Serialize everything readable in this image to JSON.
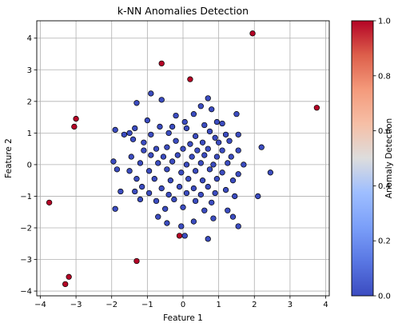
{
  "chart_data": {
    "type": "scatter",
    "title": "k-NN Anomalies Detection",
    "xlabel": "Feature 1",
    "ylabel": "Feature 2",
    "xlim": [
      -4.1,
      4.1
    ],
    "ylim": [
      -4.15,
      4.55
    ],
    "xticks": [
      -4,
      -3,
      -2,
      -1,
      0,
      1,
      2,
      3,
      4
    ],
    "yticks": [
      -4,
      -3,
      -2,
      -1,
      0,
      1,
      2,
      3,
      4
    ],
    "grid": true,
    "colormap": "coolwarm",
    "colorbar": {
      "label": "Anomaly Detection",
      "range": [
        0.0,
        1.0
      ],
      "ticks": [
        "0.0",
        "0.2",
        "0.4",
        "0.6",
        "0.8",
        "1.0"
      ]
    },
    "colors": {
      "normal": "#3b4cc0",
      "anomaly": "#b40426"
    },
    "points": [
      {
        "x": 1.95,
        "y": 4.15,
        "c": 1
      },
      {
        "x": -0.6,
        "y": 3.2,
        "c": 1
      },
      {
        "x": 0.2,
        "y": 2.7,
        "c": 1
      },
      {
        "x": 3.75,
        "y": 1.8,
        "c": 1
      },
      {
        "x": -3.0,
        "y": 1.45,
        "c": 1
      },
      {
        "x": -3.05,
        "y": 1.2,
        "c": 1
      },
      {
        "x": -3.75,
        "y": -1.2,
        "c": 1
      },
      {
        "x": -0.1,
        "y": -2.25,
        "c": 1
      },
      {
        "x": -1.3,
        "y": -3.05,
        "c": 1
      },
      {
        "x": -3.2,
        "y": -3.55,
        "c": 1
      },
      {
        "x": -3.3,
        "y": -3.78,
        "c": 1
      },
      {
        "x": -0.9,
        "y": 2.25,
        "c": 0
      },
      {
        "x": -0.6,
        "y": 2.05,
        "c": 0
      },
      {
        "x": 0.7,
        "y": 2.1,
        "c": 0
      },
      {
        "x": -1.3,
        "y": 1.95,
        "c": 0
      },
      {
        "x": 0.5,
        "y": 1.85,
        "c": 0
      },
      {
        "x": 0.8,
        "y": 1.75,
        "c": 0
      },
      {
        "x": -0.2,
        "y": 1.55,
        "c": 0
      },
      {
        "x": 0.3,
        "y": 1.6,
        "c": 0
      },
      {
        "x": 1.5,
        "y": 1.6,
        "c": 0
      },
      {
        "x": -1.0,
        "y": 1.4,
        "c": 0
      },
      {
        "x": 0.05,
        "y": 1.35,
        "c": 0
      },
      {
        "x": 0.95,
        "y": 1.35,
        "c": 0
      },
      {
        "x": -1.9,
        "y": 1.1,
        "c": 0
      },
      {
        "x": -1.65,
        "y": 0.95,
        "c": 0
      },
      {
        "x": -1.5,
        "y": 1.0,
        "c": 0
      },
      {
        "x": -1.35,
        "y": 1.15,
        "c": 0
      },
      {
        "x": -0.65,
        "y": 1.2,
        "c": 0
      },
      {
        "x": -0.3,
        "y": 1.2,
        "c": 0
      },
      {
        "x": 0.1,
        "y": 1.15,
        "c": 0
      },
      {
        "x": 0.6,
        "y": 1.25,
        "c": 0
      },
      {
        "x": 0.75,
        "y": 1.05,
        "c": 0
      },
      {
        "x": 1.1,
        "y": 1.3,
        "c": 0
      },
      {
        "x": -1.4,
        "y": 0.8,
        "c": 0
      },
      {
        "x": -0.9,
        "y": 0.95,
        "c": 0
      },
      {
        "x": -0.4,
        "y": 1.0,
        "c": 0
      },
      {
        "x": 0.35,
        "y": 0.9,
        "c": 0
      },
      {
        "x": 0.9,
        "y": 0.85,
        "c": 0
      },
      {
        "x": 1.2,
        "y": 0.95,
        "c": 0
      },
      {
        "x": 1.55,
        "y": 0.95,
        "c": 0
      },
      {
        "x": -1.1,
        "y": 0.7,
        "c": 0
      },
      {
        "x": -0.2,
        "y": 0.75,
        "c": 0
      },
      {
        "x": 0.2,
        "y": 0.65,
        "c": 0
      },
      {
        "x": 0.55,
        "y": 0.7,
        "c": 0
      },
      {
        "x": 1.0,
        "y": 0.7,
        "c": 0
      },
      {
        "x": 1.3,
        "y": 0.75,
        "c": 0
      },
      {
        "x": -1.1,
        "y": 0.45,
        "c": 0
      },
      {
        "x": -0.75,
        "y": 0.5,
        "c": 0
      },
      {
        "x": -0.45,
        "y": 0.55,
        "c": 0
      },
      {
        "x": 0.0,
        "y": 0.5,
        "c": 0
      },
      {
        "x": 0.4,
        "y": 0.45,
        "c": 0
      },
      {
        "x": 0.7,
        "y": 0.5,
        "c": 0
      },
      {
        "x": 1.1,
        "y": 0.45,
        "c": 0
      },
      {
        "x": 1.55,
        "y": 0.45,
        "c": 0
      },
      {
        "x": 2.2,
        "y": 0.55,
        "c": 0
      },
      {
        "x": -1.45,
        "y": 0.25,
        "c": 0
      },
      {
        "x": -0.9,
        "y": 0.3,
        "c": 0
      },
      {
        "x": -0.55,
        "y": 0.25,
        "c": 0
      },
      {
        "x": -0.15,
        "y": 0.3,
        "c": 0
      },
      {
        "x": 0.25,
        "y": 0.25,
        "c": 0
      },
      {
        "x": 0.6,
        "y": 0.3,
        "c": 0
      },
      {
        "x": 0.95,
        "y": 0.25,
        "c": 0
      },
      {
        "x": 1.35,
        "y": 0.25,
        "c": 0
      },
      {
        "x": -1.95,
        "y": 0.1,
        "c": 0
      },
      {
        "x": -1.2,
        "y": 0.05,
        "c": 0
      },
      {
        "x": -0.7,
        "y": 0.05,
        "c": 0
      },
      {
        "x": -0.3,
        "y": 0.1,
        "c": 0
      },
      {
        "x": 0.1,
        "y": 0.0,
        "c": 0
      },
      {
        "x": 0.5,
        "y": 0.05,
        "c": 0
      },
      {
        "x": 0.85,
        "y": 0.0,
        "c": 0
      },
      {
        "x": 1.25,
        "y": 0.05,
        "c": 0
      },
      {
        "x": 1.7,
        "y": 0.0,
        "c": 0
      },
      {
        "x": -1.85,
        "y": -0.15,
        "c": 0
      },
      {
        "x": -1.5,
        "y": -0.2,
        "c": 0
      },
      {
        "x": -0.95,
        "y": -0.2,
        "c": 0
      },
      {
        "x": -0.45,
        "y": -0.15,
        "c": 0
      },
      {
        "x": -0.05,
        "y": -0.25,
        "c": 0
      },
      {
        "x": 0.35,
        "y": -0.2,
        "c": 0
      },
      {
        "x": 0.75,
        "y": -0.15,
        "c": 0
      },
      {
        "x": 1.1,
        "y": -0.25,
        "c": 0
      },
      {
        "x": 1.55,
        "y": -0.3,
        "c": 0
      },
      {
        "x": 2.45,
        "y": -0.25,
        "c": 0
      },
      {
        "x": -1.3,
        "y": -0.45,
        "c": 0
      },
      {
        "x": -0.8,
        "y": -0.45,
        "c": 0
      },
      {
        "x": -0.35,
        "y": -0.5,
        "c": 0
      },
      {
        "x": 0.15,
        "y": -0.45,
        "c": 0
      },
      {
        "x": 0.55,
        "y": -0.5,
        "c": 0
      },
      {
        "x": 0.95,
        "y": -0.45,
        "c": 0
      },
      {
        "x": 1.4,
        "y": -0.5,
        "c": 0
      },
      {
        "x": -1.15,
        "y": -0.7,
        "c": 0
      },
      {
        "x": -0.6,
        "y": -0.75,
        "c": 0
      },
      {
        "x": -0.1,
        "y": -0.7,
        "c": 0
      },
      {
        "x": 0.3,
        "y": -0.75,
        "c": 0
      },
      {
        "x": 0.7,
        "y": -0.7,
        "c": 0
      },
      {
        "x": 1.2,
        "y": -0.8,
        "c": 0
      },
      {
        "x": -1.75,
        "y": -0.85,
        "c": 0
      },
      {
        "x": -1.35,
        "y": -0.85,
        "c": 0
      },
      {
        "x": -0.95,
        "y": -0.9,
        "c": 0
      },
      {
        "x": -0.4,
        "y": -0.95,
        "c": 0
      },
      {
        "x": 0.1,
        "y": -0.9,
        "c": 0
      },
      {
        "x": 0.5,
        "y": -0.95,
        "c": 0
      },
      {
        "x": 0.9,
        "y": -0.9,
        "c": 0
      },
      {
        "x": 1.45,
        "y": -1.0,
        "c": 0
      },
      {
        "x": 2.1,
        "y": -1.0,
        "c": 0
      },
      {
        "x": -1.2,
        "y": -1.1,
        "c": 0
      },
      {
        "x": -0.75,
        "y": -1.15,
        "c": 0
      },
      {
        "x": -0.25,
        "y": -1.1,
        "c": 0
      },
      {
        "x": 0.35,
        "y": -1.15,
        "c": 0
      },
      {
        "x": 0.8,
        "y": -1.2,
        "c": 0
      },
      {
        "x": -1.9,
        "y": -1.4,
        "c": 0
      },
      {
        "x": -0.5,
        "y": -1.4,
        "c": 0
      },
      {
        "x": 0.0,
        "y": -1.35,
        "c": 0
      },
      {
        "x": 0.6,
        "y": -1.45,
        "c": 0
      },
      {
        "x": 1.25,
        "y": -1.45,
        "c": 0
      },
      {
        "x": -0.7,
        "y": -1.65,
        "c": 0
      },
      {
        "x": 0.85,
        "y": -1.7,
        "c": 0
      },
      {
        "x": 1.4,
        "y": -1.65,
        "c": 0
      },
      {
        "x": -0.45,
        "y": -1.85,
        "c": 0
      },
      {
        "x": 0.3,
        "y": -1.8,
        "c": 0
      },
      {
        "x": 1.55,
        "y": -1.95,
        "c": 0
      },
      {
        "x": -0.05,
        "y": -1.95,
        "c": 0
      },
      {
        "x": 0.05,
        "y": -2.25,
        "c": 0
      },
      {
        "x": 0.7,
        "y": -2.35,
        "c": 0
      }
    ]
  }
}
